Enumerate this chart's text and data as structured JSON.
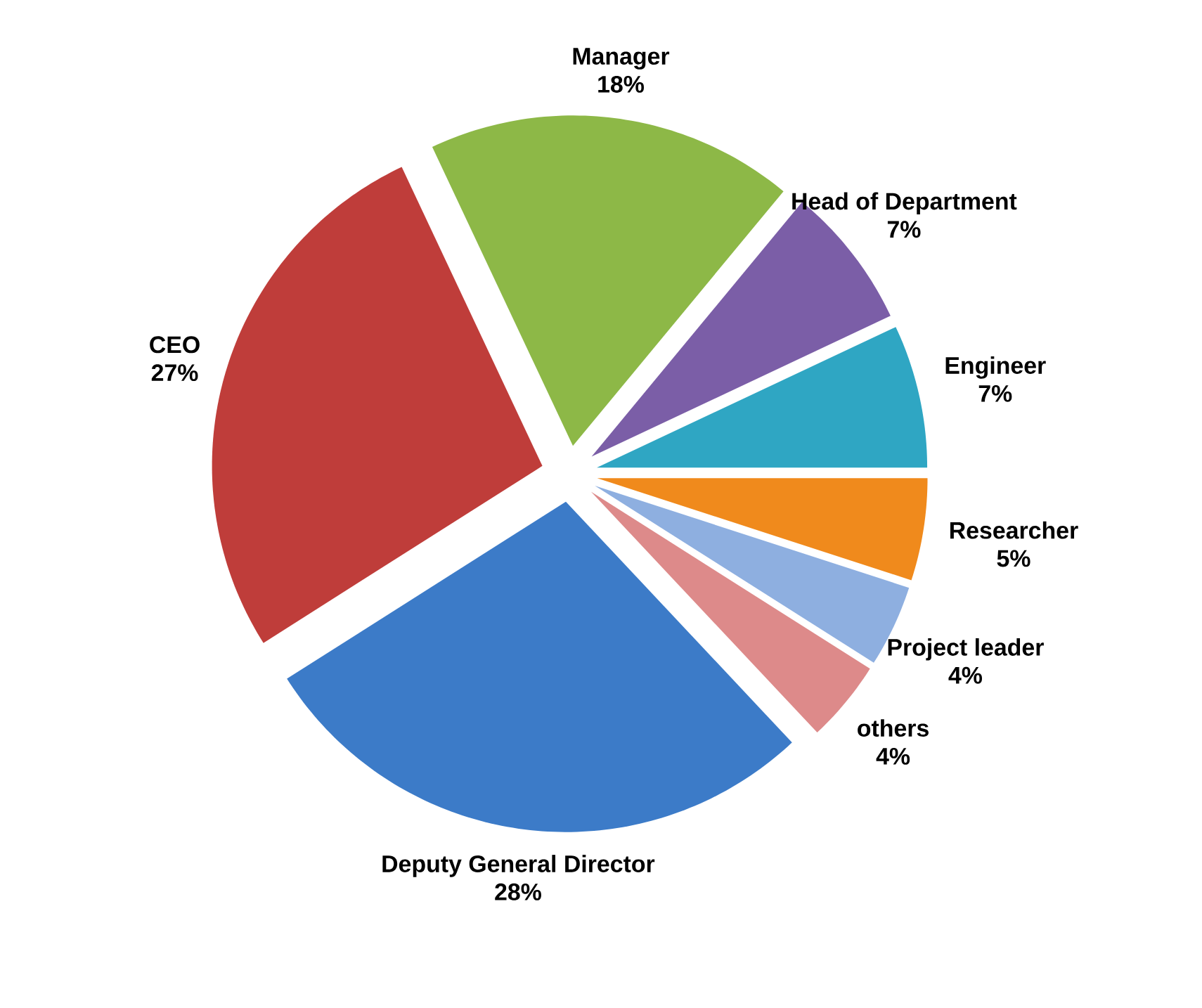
{
  "chart_data": {
    "type": "pie",
    "categories": [
      "Manager",
      "Head of Department",
      "Engineer",
      "Researcher",
      "Project leader",
      "others",
      "Deputy General Director",
      "CEO"
    ],
    "values": [
      18,
      7,
      7,
      5,
      4,
      4,
      28,
      27
    ],
    "value_labels": [
      "18%",
      "7%",
      "7%",
      "5%",
      "4%",
      "4%",
      "28%",
      "27%"
    ],
    "colors": [
      "#8db847",
      "#7b5ea7",
      "#2fa6c3",
      "#f08a1c",
      "#8eafe0",
      "#dd8a8a",
      "#3c7bc8",
      "#bf3d3a"
    ]
  }
}
